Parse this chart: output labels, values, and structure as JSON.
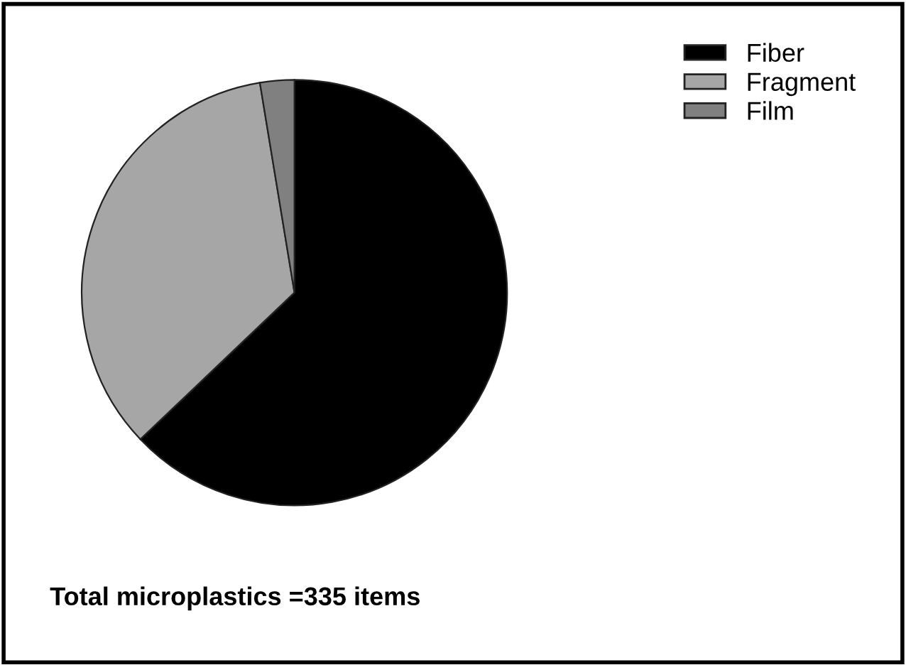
{
  "chart_data": {
    "type": "pie",
    "categories": [
      "Fiber",
      "Fragment",
      "Film"
    ],
    "values": [
      62.9,
      34.5,
      2.6
    ],
    "colors": [
      "#000000",
      "#a6a6a6",
      "#808080"
    ],
    "legend": "top right",
    "annotations": [
      "Total microplastics =335 items"
    ]
  }
}
